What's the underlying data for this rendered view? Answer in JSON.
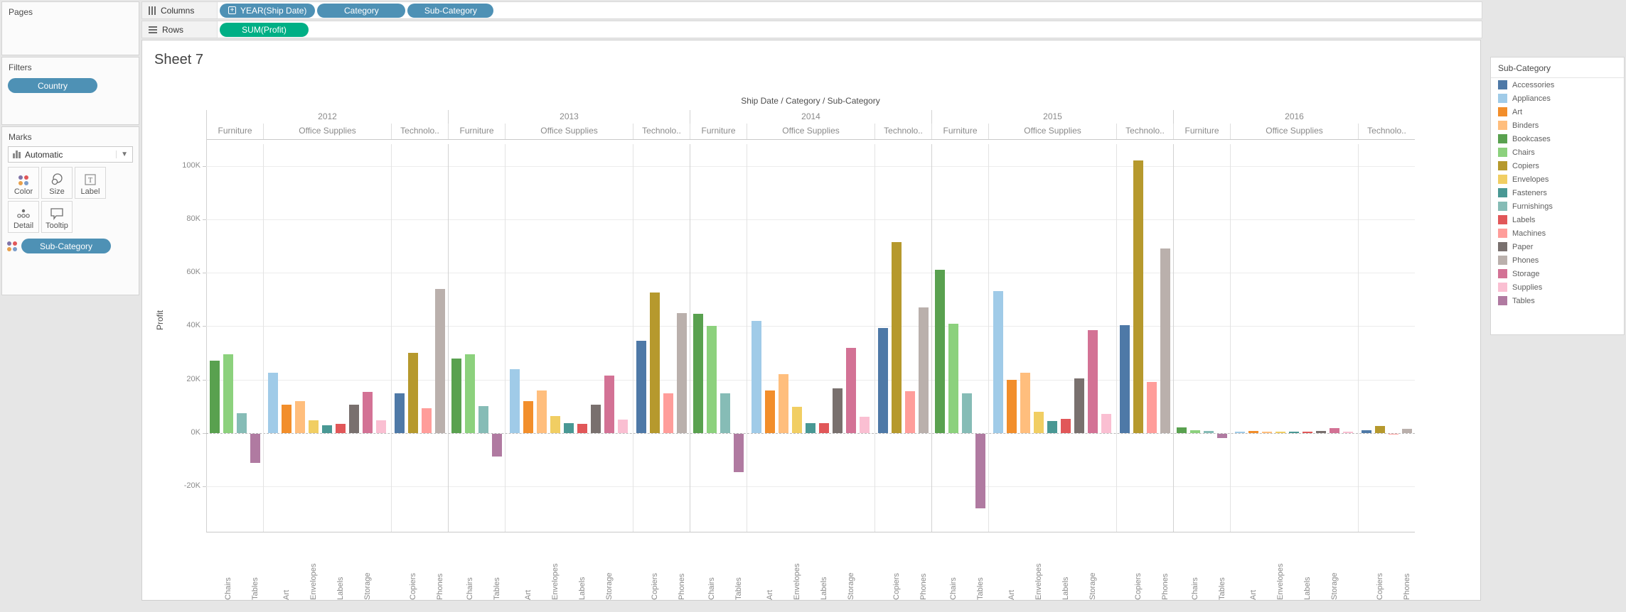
{
  "left_panel": {
    "pages_label": "Pages",
    "filters_label": "Filters",
    "filter_pills": [
      "Country"
    ],
    "marks": {
      "label": "Marks",
      "mark_type": "Automatic",
      "buttons": [
        "Color",
        "Size",
        "Label",
        "Detail",
        "Tooltip"
      ],
      "pills": [
        "Sub-Category"
      ]
    }
  },
  "shelves": {
    "columns_label": "Columns",
    "columns_pills": [
      "YEAR(Ship Date)",
      "Category",
      "Sub-Category"
    ],
    "rows_label": "Rows",
    "rows_pills": [
      "SUM(Profit)"
    ]
  },
  "sheet": {
    "title": "Sheet 7"
  },
  "colors": {
    "dimension_pill": "#4e91b5",
    "measure_pill": "#00af85"
  },
  "chart_data": {
    "type": "bar",
    "title": "Ship Date / Category / Sub-Category",
    "ylabel": "Profit",
    "value_unit": "K",
    "ylim_k": [
      -37,
      108
    ],
    "y_ticks_k": [
      100,
      80,
      60,
      40,
      20,
      0,
      -20
    ],
    "grid": "horizontal",
    "years": [
      "2012",
      "2013",
      "2014",
      "2015",
      "2016"
    ],
    "category_panes": [
      {
        "name": "Furniture",
        "display": "Furniture",
        "subs": [
          "Bookcases",
          "Chairs",
          "Furnishings",
          "Tables"
        ],
        "axis_labels": [
          "Chairs",
          "Tables"
        ]
      },
      {
        "name": "Office Supplies",
        "display": "Office Supplies",
        "subs": [
          "Appliances",
          "Art",
          "Binders",
          "Envelopes",
          "Fasteners",
          "Labels",
          "Paper",
          "Storage",
          "Supplies"
        ],
        "axis_labels": [
          "Art",
          "Envelopes",
          "Labels",
          "Storage"
        ]
      },
      {
        "name": "Technology",
        "display": "Technolo..",
        "subs": [
          "Accessories",
          "Copiers",
          "Machines",
          "Phones"
        ],
        "axis_labels": [
          "Copiers",
          "Phones"
        ]
      }
    ],
    "legend": {
      "title": "Sub-Category",
      "items": [
        {
          "label": "Accessories",
          "color": "#4E79A7"
        },
        {
          "label": "Appliances",
          "color": "#A0CBE8"
        },
        {
          "label": "Art",
          "color": "#F28E2B"
        },
        {
          "label": "Binders",
          "color": "#FFBE7D"
        },
        {
          "label": "Bookcases",
          "color": "#59A14F"
        },
        {
          "label": "Chairs",
          "color": "#8CD17D"
        },
        {
          "label": "Copiers",
          "color": "#B6992D"
        },
        {
          "label": "Envelopes",
          "color": "#F1CE63"
        },
        {
          "label": "Fasteners",
          "color": "#499894"
        },
        {
          "label": "Furnishings",
          "color": "#86BCB6"
        },
        {
          "label": "Labels",
          "color": "#E15759"
        },
        {
          "label": "Machines",
          "color": "#FF9D9A"
        },
        {
          "label": "Paper",
          "color": "#79706E"
        },
        {
          "label": "Phones",
          "color": "#BAB0AC"
        },
        {
          "label": "Storage",
          "color": "#D37295"
        },
        {
          "label": "Supplies",
          "color": "#FABFD2"
        },
        {
          "label": "Tables",
          "color": "#B07AA1"
        }
      ]
    },
    "values_k": {
      "2012": {
        "Furniture": [
          27,
          29.5,
          7.5,
          -11
        ],
        "Office Supplies": [
          22.5,
          10.5,
          12,
          4.8,
          2.8,
          3.4,
          10.5,
          15.5,
          4.8
        ],
        "Technology": [
          14.8,
          30,
          9.2,
          54
        ]
      },
      "2013": {
        "Furniture": [
          28,
          29.5,
          10,
          -8.5
        ],
        "Office Supplies": [
          24,
          12,
          16,
          6.5,
          3.6,
          3.4,
          10.5,
          21.5,
          5
        ],
        "Technology": [
          34.5,
          52.5,
          15,
          45
        ]
      },
      "2014": {
        "Furniture": [
          44.5,
          40,
          14.8,
          -14.3
        ],
        "Office Supplies": [
          42,
          16,
          22,
          9.9,
          3.6,
          3.6,
          16.7,
          32,
          6
        ],
        "Technology": [
          39.3,
          71.5,
          15.6,
          47
        ]
      },
      "2015": {
        "Furniture": [
          61,
          41,
          15,
          -28
        ],
        "Office Supplies": [
          53,
          20,
          22.5,
          7.9,
          4.5,
          5.2,
          20.5,
          38.5,
          7.1
        ],
        "Technology": [
          40.5,
          102,
          19.2,
          69
        ]
      },
      "2016": {
        "Furniture": [
          2.2,
          1.1,
          0.9,
          -1.5
        ],
        "Office Supplies": [
          0.5,
          0.7,
          0.6,
          0.6,
          0.6,
          0.6,
          0.8,
          1.9,
          0.4
        ],
        "Technology": [
          1,
          2.6,
          -0.3,
          1.6
        ]
      }
    }
  }
}
